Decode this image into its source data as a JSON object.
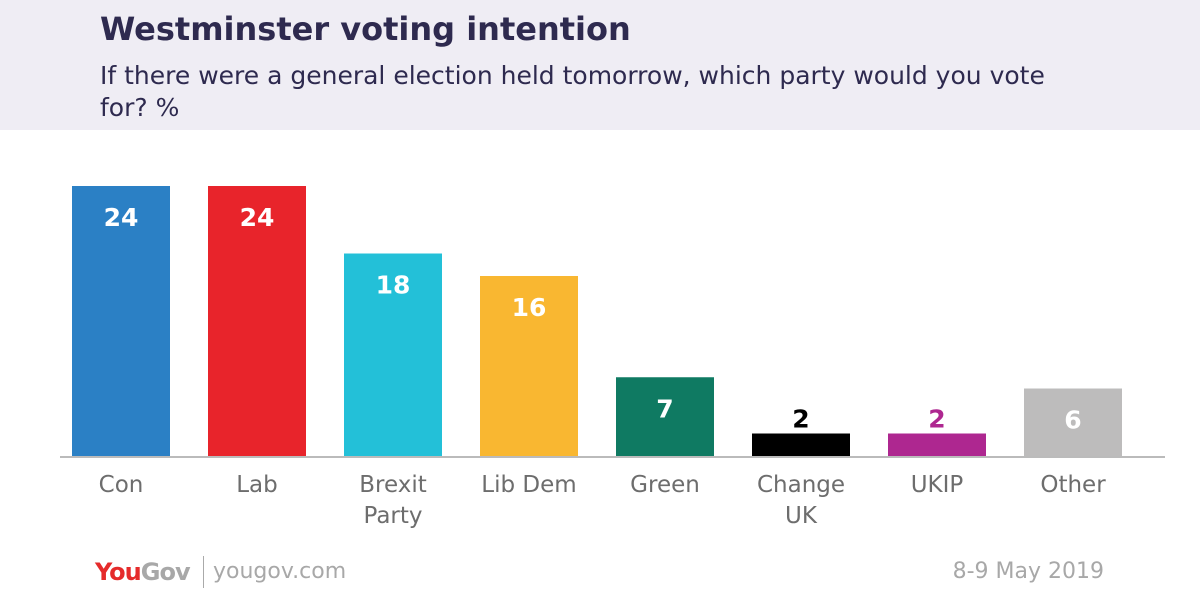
{
  "header": {
    "title": "Westminster voting intention",
    "subtitle": "If there were a general election held tomorrow, which party would you vote for? %"
  },
  "chart_data": {
    "type": "bar",
    "title": "Westminster voting intention",
    "subtitle": "If there were a general election held tomorrow, which party would you vote for? %",
    "categories": [
      [
        "Con"
      ],
      [
        "Lab"
      ],
      [
        "Brexit",
        "Party"
      ],
      [
        "Lib Dem"
      ],
      [
        "Green"
      ],
      [
        "Change",
        "UK"
      ],
      [
        "UKIP"
      ],
      [
        "Other"
      ]
    ],
    "values": [
      24,
      24,
      18,
      16,
      7,
      2,
      2,
      6
    ],
    "colors": [
      "#2b80c5",
      "#e8242b",
      "#23c0d8",
      "#f9b731",
      "#0f7a62",
      "#000000",
      "#ae2790",
      "#bdbcbc"
    ],
    "label_colors": [
      "#ffffff",
      "#ffffff",
      "#ffffff",
      "#ffffff",
      "#ffffff",
      "#000000",
      "#ae2790",
      "#ffffff"
    ],
    "label_inside": [
      true,
      true,
      true,
      true,
      true,
      false,
      false,
      true
    ],
    "ylim": [
      0,
      24
    ],
    "grid": false
  },
  "footer": {
    "brand_you": "You",
    "brand_gov": "Gov",
    "site": "yougov.com",
    "date": "8-9 May 2019"
  }
}
